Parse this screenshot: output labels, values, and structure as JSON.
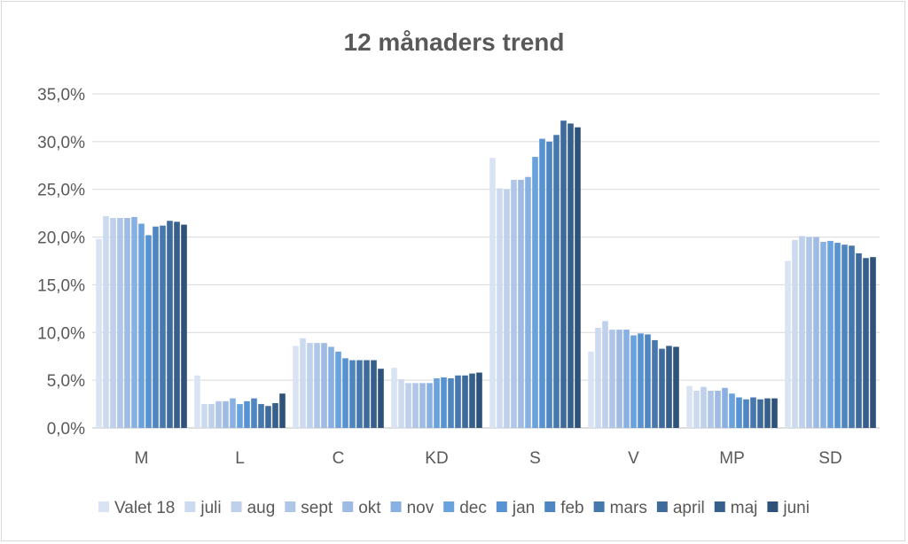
{
  "chart_data": {
    "type": "bar",
    "title": "12 månaders trend",
    "xlabel": "",
    "ylabel": "",
    "ylim": [
      0,
      35
    ],
    "yticks": [
      "0,0%",
      "5,0%",
      "10,0%",
      "15,0%",
      "20,0%",
      "25,0%",
      "30,0%",
      "35,0%"
    ],
    "grid": true,
    "legend_position": "bottom",
    "categories": [
      "M",
      "L",
      "C",
      "KD",
      "S",
      "V",
      "MP",
      "SD"
    ],
    "series": [
      {
        "name": "Valet 18",
        "color": "#dae3f3",
        "values": [
          19.8,
          5.5,
          8.6,
          6.3,
          28.3,
          8.0,
          4.4,
          17.5
        ]
      },
      {
        "name": "juli",
        "color": "#ccdaf0",
        "values": [
          22.2,
          2.5,
          9.4,
          5.1,
          25.1,
          10.5,
          3.9,
          19.7
        ]
      },
      {
        "name": "aug",
        "color": "#bed0ec",
        "values": [
          22.0,
          2.5,
          8.9,
          4.7,
          25.0,
          11.2,
          4.3,
          20.1
        ]
      },
      {
        "name": "sept",
        "color": "#b0c6e8",
        "values": [
          22.0,
          2.8,
          8.9,
          4.7,
          26.0,
          10.3,
          3.9,
          20.0
        ]
      },
      {
        "name": "okt",
        "color": "#9fbbe4",
        "values": [
          22.0,
          2.8,
          8.9,
          4.7,
          26.0,
          10.3,
          3.9,
          20.0
        ]
      },
      {
        "name": "nov",
        "color": "#88b0e2",
        "values": [
          22.1,
          3.1,
          8.5,
          4.7,
          26.3,
          10.3,
          4.2,
          19.5
        ]
      },
      {
        "name": "dec",
        "color": "#6aa2dd",
        "values": [
          21.4,
          2.5,
          8.0,
          5.2,
          28.4,
          9.7,
          3.6,
          19.6
        ]
      },
      {
        "name": "jan",
        "color": "#5793d2",
        "values": [
          20.2,
          2.8,
          7.3,
          5.3,
          30.3,
          9.9,
          3.2,
          19.4
        ]
      },
      {
        "name": "feb",
        "color": "#4f86c2",
        "values": [
          21.1,
          3.1,
          7.1,
          5.2,
          30.0,
          9.8,
          3.0,
          19.2
        ]
      },
      {
        "name": "mars",
        "color": "#4677ad",
        "values": [
          21.2,
          2.5,
          7.1,
          5.5,
          30.7,
          9.2,
          3.2,
          19.1
        ]
      },
      {
        "name": "april",
        "color": "#3f6b9c",
        "values": [
          21.7,
          2.3,
          7.1,
          5.5,
          32.2,
          8.3,
          3.0,
          18.3
        ]
      },
      {
        "name": "maj",
        "color": "#375f8c",
        "values": [
          21.6,
          2.6,
          7.1,
          5.7,
          31.9,
          8.6,
          3.1,
          17.8
        ]
      },
      {
        "name": "juni",
        "color": "#2e5279",
        "values": [
          21.3,
          3.6,
          6.2,
          5.8,
          31.5,
          8.5,
          3.1,
          17.9
        ]
      }
    ]
  }
}
